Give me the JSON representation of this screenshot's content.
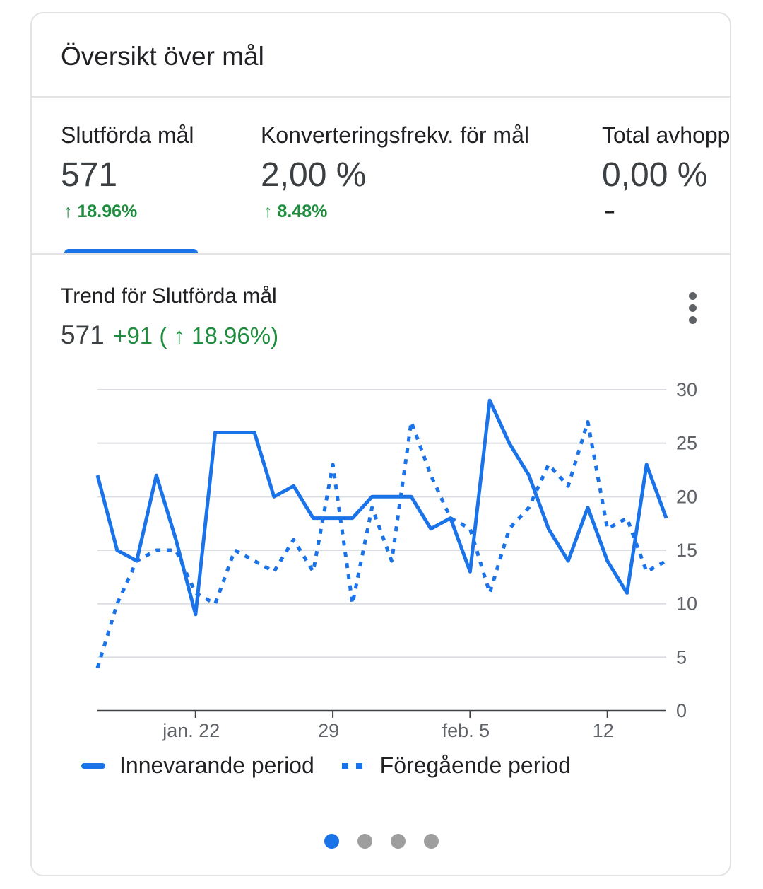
{
  "card": {
    "title": "Översikt över mål"
  },
  "metrics": [
    {
      "label": "Slutförda mål",
      "value": "571",
      "change": "↑ 18.96%",
      "active": true
    },
    {
      "label": "Konverteringsfrekv. för mål",
      "value": "2,00 %",
      "change": "↑ 8.48%",
      "active": false
    },
    {
      "label": "Total avhoppsfrekvens",
      "value": "0,00 %",
      "change": "–",
      "active": false
    }
  ],
  "trend": {
    "title": "Trend för Slutförda mål",
    "value": "571",
    "change": "+91 ( ↑ 18.96%)",
    "menu_icon": "more-vert-icon"
  },
  "chart_data": {
    "type": "line",
    "y_ticks": [
      "30",
      "25",
      "20",
      "15",
      "10",
      "5",
      "0"
    ],
    "ylim": [
      0,
      30
    ],
    "x_tick_labels": [
      {
        "label": "jan. 22",
        "index": 5
      },
      {
        "label": "29",
        "index": 12
      },
      {
        "label": "feb. 5",
        "index": 19
      },
      {
        "label": "12",
        "index": 26
      }
    ],
    "grid": true,
    "legend_position": "bottom",
    "series": [
      {
        "name": "Innevarande period",
        "style": "solid",
        "values": [
          22,
          15,
          14,
          22,
          16,
          9,
          26,
          26,
          26,
          20,
          21,
          18,
          18,
          18,
          20,
          20,
          20,
          17,
          18,
          13,
          29,
          25,
          22,
          17,
          14,
          19,
          14,
          11,
          23,
          18
        ]
      },
      {
        "name": "Föregående period",
        "style": "dotted",
        "values": [
          4,
          10,
          14,
          15,
          15,
          11,
          10,
          15,
          14,
          13,
          16,
          13,
          23,
          10,
          19,
          14,
          27,
          22,
          18,
          17,
          11,
          17,
          19,
          23,
          21,
          27,
          17,
          18,
          13,
          14
        ]
      }
    ]
  },
  "colors": {
    "accent": "#1a73e8",
    "positive": "#1e8e3e",
    "grid": "#dadce0",
    "axis": "#3c4043",
    "pager_inactive": "#9e9e9e"
  },
  "pager": {
    "count": 4,
    "active_index": 0
  }
}
